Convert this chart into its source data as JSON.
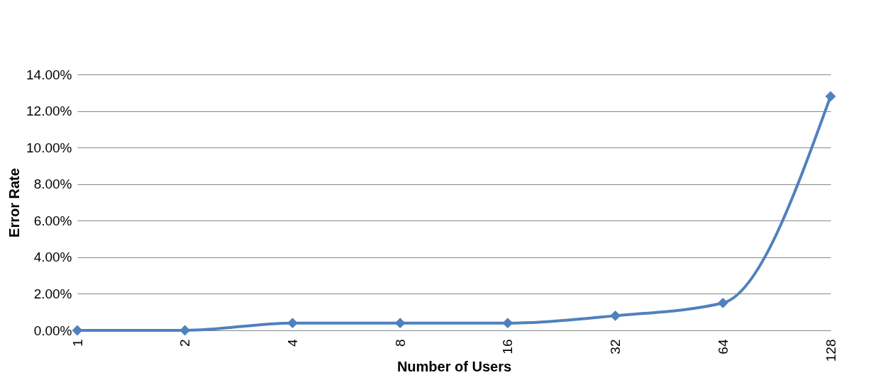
{
  "chart_data": {
    "type": "line",
    "xlabel": "Number of Users",
    "ylabel": "Error Rate",
    "categories": [
      "1",
      "2",
      "4",
      "8",
      "16",
      "32",
      "64",
      "128"
    ],
    "series": [
      {
        "color": "#4f81bd",
        "values": [
          0,
          0,
          0.4,
          0.4,
          0.4,
          0.8,
          1.5,
          12.8
        ]
      }
    ],
    "ylim": [
      0,
      14
    ],
    "yticks": [
      {
        "value": 0,
        "label": "0.00%"
      },
      {
        "value": 2,
        "label": "2.00%"
      },
      {
        "value": 4,
        "label": "4.00%"
      },
      {
        "value": 6,
        "label": "6.00%"
      },
      {
        "value": 8,
        "label": "8.00%"
      },
      {
        "value": 10,
        "label": "10.00%"
      },
      {
        "value": 12,
        "label": "12.00%"
      },
      {
        "value": 14,
        "label": "14.00%"
      }
    ],
    "grid": "y",
    "marker": "diamond",
    "line_style": "solid"
  }
}
